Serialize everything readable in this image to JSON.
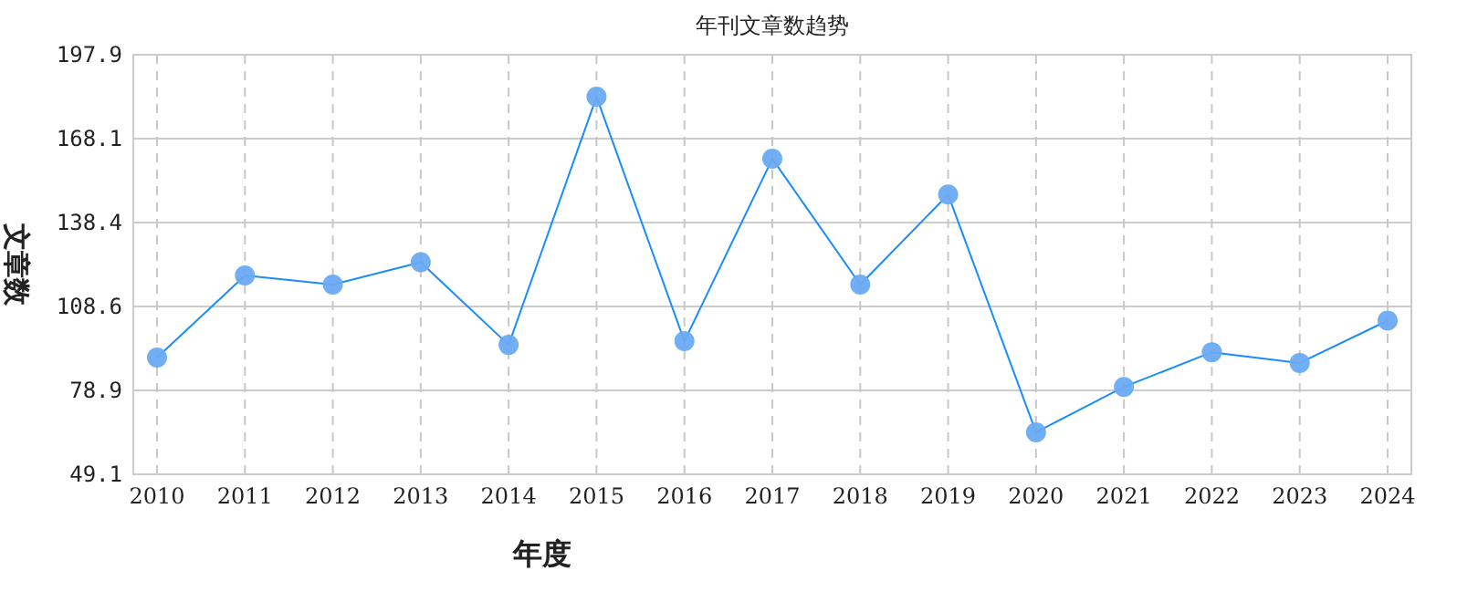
{
  "chart_data": {
    "type": "line",
    "title": "年刊文章数趋势",
    "xlabel": "年度",
    "ylabel": "文章数",
    "categories": [
      "2010",
      "2011",
      "2012",
      "2013",
      "2014",
      "2015",
      "2016",
      "2017",
      "2018",
      "2019",
      "2020",
      "2021",
      "2022",
      "2023",
      "2024"
    ],
    "series": [
      {
        "color": "#1a8cff",
        "values": [
          90.5,
          119.6,
          116.4,
          124.3,
          95.0,
          183.0,
          96.3,
          161.0,
          116.4,
          148.3,
          64.0,
          80.1,
          92.4,
          88.6,
          103.6
        ]
      }
    ],
    "ylim": [
      49.1,
      197.9
    ],
    "yticks": [
      49.1,
      78.9,
      108.6,
      138.4,
      168.1,
      197.9
    ],
    "grid": true,
    "marker": "circle",
    "line_style": "solid"
  }
}
